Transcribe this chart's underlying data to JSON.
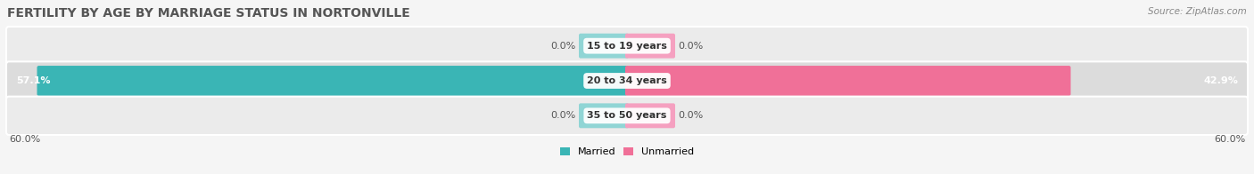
{
  "title": "FERTILITY BY AGE BY MARRIAGE STATUS IN NORTONVILLE",
  "source": "Source: ZipAtlas.com",
  "categories": [
    "15 to 19 years",
    "20 to 34 years",
    "35 to 50 years"
  ],
  "married_values": [
    0.0,
    57.1,
    0.0
  ],
  "unmarried_values": [
    0.0,
    42.9,
    0.0
  ],
  "max_value": 60.0,
  "married_color": "#3ab5b5",
  "unmarried_color": "#f07098",
  "married_stub_color": "#90d5d5",
  "unmarried_stub_color": "#f5a0c0",
  "row_bg_color_odd": "#ebebeb",
  "row_bg_color_even": "#dcdcdc",
  "axis_label_left": "60.0%",
  "axis_label_right": "60.0%",
  "bg_color": "#f5f5f5",
  "title_color": "#555555",
  "source_color": "#888888",
  "label_color_dark": "#555555",
  "title_fontsize": 10,
  "bar_label_fontsize": 8,
  "cat_label_fontsize": 8,
  "axis_fontsize": 8
}
